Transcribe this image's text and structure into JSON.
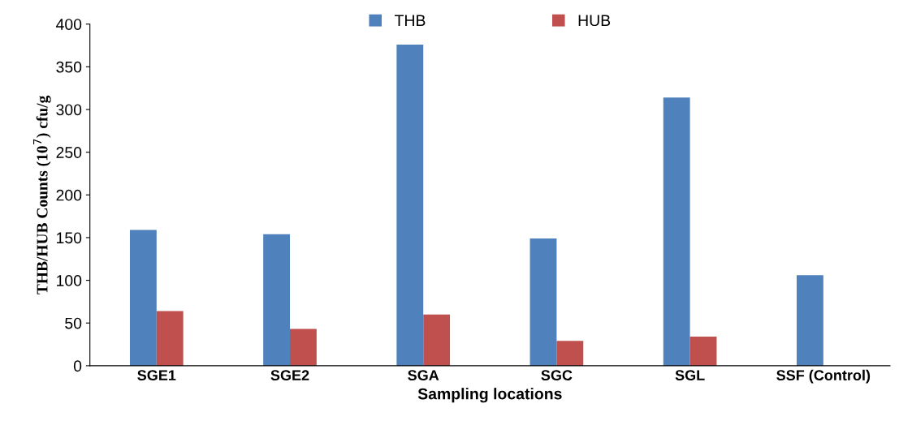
{
  "chart_data": {
    "type": "bar",
    "xlabel": "Sampling locations",
    "ylabel": "THB/HUB Counts (10$^{7}$) cfu/g",
    "categories": [
      "SGE1",
      "SGE2",
      "SGA",
      "SGC",
      "SGL",
      "SSF (Control)"
    ],
    "series": [
      {
        "name": "THB",
        "color": "#4f81bd",
        "values": [
          159,
          154,
          376,
          149,
          314,
          106
        ]
      },
      {
        "name": "HUB",
        "color": "#c0504d",
        "values": [
          64,
          43,
          60,
          29,
          34,
          null
        ]
      }
    ],
    "ylim": [
      0,
      400
    ],
    "yticks": [
      0,
      50,
      100,
      150,
      200,
      250,
      300,
      350,
      400
    ],
    "grid": false,
    "legend": "top"
  }
}
